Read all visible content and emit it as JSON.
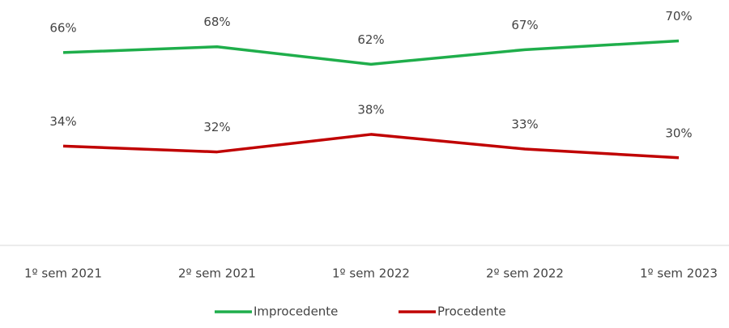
{
  "chart_data": {
    "type": "line",
    "categories": [
      "1º sem 2021",
      "2º sem 2021",
      "1º sem 2022",
      "2º sem 2022",
      "1º sem 2023"
    ],
    "series": [
      {
        "name": "Improcedente",
        "color": "#1fae4b",
        "values": [
          66,
          68,
          62,
          67,
          70
        ],
        "value_labels": [
          "66%",
          "68%",
          "62%",
          "67%",
          "70%"
        ]
      },
      {
        "name": "Procedente",
        "color": "#c00000",
        "values": [
          34,
          32,
          38,
          33,
          30
        ],
        "value_labels": [
          "34%",
          "32%",
          "38%",
          "33%",
          "30%"
        ]
      }
    ],
    "ylim": [
      0,
      84
    ],
    "grid": false,
    "legend": "bottom"
  }
}
